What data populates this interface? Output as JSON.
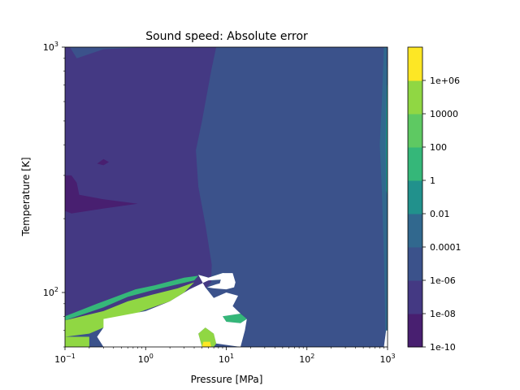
{
  "chart_data": {
    "type": "heatmap",
    "subtype": "filled-contour",
    "title": "Sound speed: Absolute error",
    "xlabel": "Pressure [MPa]",
    "ylabel": "Temperature [K]",
    "xscale": "log",
    "yscale": "log",
    "xlim": [
      0.1,
      1000
    ],
    "ylim": [
      60,
      1000
    ],
    "x_ticks": [
      {
        "value": 0.1,
        "base": "10",
        "exp": "−1"
      },
      {
        "value": 1,
        "base": "10",
        "exp": "0"
      },
      {
        "value": 10,
        "base": "10",
        "exp": "1"
      },
      {
        "value": 100,
        "base": "10",
        "exp": "2"
      },
      {
        "value": 1000,
        "base": "10",
        "exp": "3"
      }
    ],
    "y_ticks": [
      {
        "value": 100,
        "base": "10",
        "exp": "2"
      },
      {
        "value": 1000,
        "base": "10",
        "exp": "3"
      }
    ],
    "colorbar": {
      "levels": [
        1e-10,
        1e-08,
        1e-06,
        0.0001,
        0.01,
        1,
        100,
        10000,
        1000000
      ],
      "tick_labels": [
        "1e-10",
        "1e-08",
        "1e-06",
        "0.0001",
        "0.01",
        "1",
        "100",
        "10000",
        "1e+06"
      ],
      "colors": [
        "#482475",
        "#433e85",
        "#38588c",
        "#2d708e",
        "#25858e",
        "#1e9b8a",
        "#2ab07f",
        "#51c56a",
        "#86d549",
        "#c2df23",
        "#fde725"
      ],
      "band_colors": [
        "#481f70",
        "#443983",
        "#3b528b",
        "#31688e",
        "#21918c",
        "#35b779",
        "#5ec962",
        "#90d743",
        "#fde725"
      ]
    },
    "background_color": "#3b528b",
    "regions": [
      {
        "band": "1e-08 to 1e-06",
        "color": "#443983",
        "points": [
          [
            0.1,
            1000
          ],
          [
            0.115,
            1000
          ],
          [
            0.14,
            900
          ],
          [
            0.3,
            980
          ],
          [
            1,
            1000
          ],
          [
            7.5,
            1000
          ],
          [
            6.5,
            800
          ],
          [
            5,
            500
          ],
          [
            4.2,
            380
          ],
          [
            4.5,
            270
          ],
          [
            5.5,
            190
          ],
          [
            6.6,
            130
          ],
          [
            6.5,
            110
          ],
          [
            5,
            100
          ],
          [
            3,
            95
          ],
          [
            1.5,
            88
          ],
          [
            0.6,
            82
          ],
          [
            0.3,
            78
          ],
          [
            0.1,
            74
          ]
        ]
      },
      {
        "band": "1e-10 to 1e-08",
        "color": "#481f70",
        "points": [
          [
            0.1,
            300
          ],
          [
            0.12,
            300
          ],
          [
            0.14,
            280
          ],
          [
            0.15,
            250
          ],
          [
            0.3,
            240
          ],
          [
            0.8,
            230
          ],
          [
            0.3,
            220
          ],
          [
            0.12,
            210
          ],
          [
            0.1,
            215
          ]
        ]
      },
      {
        "band": "1e-10 to 1e-08",
        "color": "#481f70",
        "points": [
          [
            0.25,
            335
          ],
          [
            0.3,
            350
          ],
          [
            0.35,
            340
          ],
          [
            0.3,
            330
          ]
        ]
      },
      {
        "band": "0.0001 to 0.01",
        "color": "#31688e",
        "points": [
          [
            900,
            1000
          ],
          [
            1000,
            1000
          ],
          [
            1000,
            60
          ],
          [
            950,
            60
          ],
          [
            900,
            140
          ],
          [
            850,
            260
          ],
          [
            800,
            400
          ],
          [
            850,
            600
          ]
        ]
      },
      {
        "band": "0.01 to 1",
        "color": "#21918c",
        "points": [
          [
            980,
            700
          ],
          [
            1000,
            700
          ],
          [
            1000,
            250
          ],
          [
            960,
            260
          ],
          [
            950,
            400
          ],
          [
            960,
            550
          ]
        ]
      },
      {
        "band": "1e-06 to 0.0001",
        "color": "#3b528b",
        "points": [
          [
            980,
            1000
          ],
          [
            1000,
            1000
          ],
          [
            1000,
            800
          ],
          [
            975,
            850
          ]
        ]
      },
      {
        "band": "1 to 100",
        "color": "#35b779",
        "points": [
          [
            0.1,
            80
          ],
          [
            0.25,
            90
          ],
          [
            0.75,
            103
          ],
          [
            1.3,
            107
          ],
          [
            3,
            115
          ],
          [
            4.5,
            117
          ],
          [
            4,
            112
          ],
          [
            2.5,
            108
          ],
          [
            1.2,
            102
          ],
          [
            0.6,
            96
          ],
          [
            0.3,
            87
          ],
          [
            0.1,
            77
          ]
        ]
      },
      {
        "band": "100 to 10000",
        "color": "#90d743",
        "points": [
          [
            0.1,
            77
          ],
          [
            0.3,
            84
          ],
          [
            0.6,
            92
          ],
          [
            1.2,
            98
          ],
          [
            2.5,
            104
          ],
          [
            4,
            110
          ],
          [
            3,
            100
          ],
          [
            2,
            92
          ],
          [
            1,
            85
          ],
          [
            0.5,
            78
          ],
          [
            0.3,
            72
          ],
          [
            0.2,
            68
          ],
          [
            0.1,
            66
          ]
        ]
      },
      {
        "band": "100 to 10000",
        "color": "#90d743",
        "points": [
          [
            0.1,
            66
          ],
          [
            0.2,
            66
          ],
          [
            0.2,
            60
          ],
          [
            0.1,
            60
          ]
        ]
      },
      {
        "band": "1 to 100",
        "color": "#35b779",
        "points": [
          [
            9,
            80
          ],
          [
            15,
            82
          ],
          [
            18,
            78
          ],
          [
            15,
            75
          ],
          [
            10,
            76
          ]
        ]
      },
      {
        "band": "100 to 10000",
        "color": "#90d743",
        "points": [
          [
            4.5,
            68
          ],
          [
            5.5,
            72
          ],
          [
            7,
            68
          ],
          [
            7.5,
            62
          ],
          [
            7,
            60
          ],
          [
            5,
            60
          ]
        ]
      },
      {
        "band": "1e+04 to 1e+06",
        "color": "#fde725",
        "points": [
          [
            5.2,
            63
          ],
          [
            6.3,
            63
          ],
          [
            6.5,
            60
          ],
          [
            5,
            60
          ]
        ]
      },
      {
        "band": "100 to 10000",
        "color": "#90d743",
        "points": [
          [
            3.2,
            75
          ],
          [
            3.5,
            77
          ],
          [
            3.6,
            73
          ],
          [
            3.4,
            71
          ]
        ]
      },
      {
        "band": "1 to 100",
        "color": "#35b779",
        "points": [
          [
            4.5,
            118
          ],
          [
            6,
            115
          ],
          [
            9,
            120
          ],
          [
            12,
            118
          ],
          [
            9,
            113
          ],
          [
            6,
            112
          ]
        ]
      }
    ],
    "missing_regions": [
      {
        "points": [
          [
            0.3,
            78
          ],
          [
            1,
            84
          ],
          [
            2,
            92
          ],
          [
            3.5,
            103
          ],
          [
            6,
            112
          ],
          [
            9,
            113
          ],
          [
            12,
            118
          ],
          [
            9,
            120
          ],
          [
            6,
            115
          ],
          [
            4.5,
            118
          ],
          [
            5.5,
            105
          ],
          [
            7,
            95
          ],
          [
            10,
            100
          ],
          [
            14,
            97
          ],
          [
            12,
            88
          ],
          [
            15,
            82
          ],
          [
            9,
            80
          ],
          [
            10,
            76
          ],
          [
            15,
            75
          ],
          [
            18,
            78
          ],
          [
            17,
            70
          ],
          [
            15,
            60
          ],
          [
            7.5,
            62
          ],
          [
            7,
            68
          ],
          [
            5.5,
            72
          ],
          [
            4.5,
            68
          ],
          [
            5,
            60
          ],
          [
            0.3,
            60
          ],
          [
            0.25,
            66
          ],
          [
            0.3,
            72
          ]
        ]
      },
      {
        "points": [
          [
            900,
            60
          ],
          [
            1000,
            60
          ],
          [
            1000,
            70
          ],
          [
            960,
            70
          ]
        ]
      },
      {
        "points": [
          [
            5.8,
            105
          ],
          [
            7.5,
            108
          ],
          [
            8.3,
            109
          ],
          [
            9,
            120
          ],
          [
            12,
            120
          ],
          [
            13,
            110
          ],
          [
            12.5,
            105
          ],
          [
            10,
            103
          ],
          [
            7,
            104
          ]
        ]
      }
    ]
  }
}
